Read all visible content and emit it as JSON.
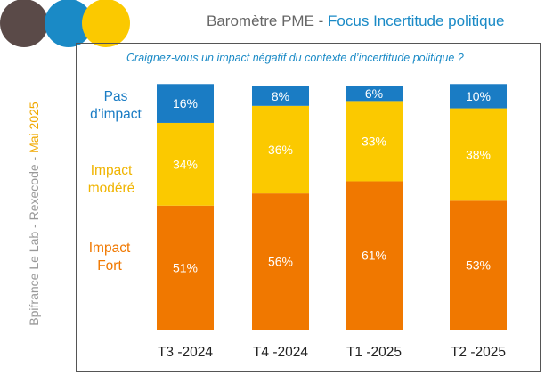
{
  "header": {
    "title_part1": "Baromètre PME",
    "separator": " - ",
    "title_part2": "Focus Incertitude politique"
  },
  "question": "Craignez-vous un impact négatif du contexte d’incertitude politique ?",
  "side_label": {
    "brand": "Bpifrance Le Lab - Rexecode - ",
    "date": "Mai 2025"
  },
  "legend": {
    "pas_impact": {
      "line1": "Pas",
      "line2": "d’impact"
    },
    "modere": {
      "line1": "Impact",
      "line2": "modéré"
    },
    "fort": {
      "line1": "Impact",
      "line2": "Fort"
    }
  },
  "colors": {
    "fort": "#f07800",
    "modere": "#fbc900",
    "pas_impact": "#1a7cc4",
    "circle1": "#5a4a48",
    "circle2": "#1a8ac6",
    "circle3": "#fbc900"
  },
  "chart_data": {
    "type": "bar",
    "stacked": true,
    "title": "Craignez-vous un impact négatif du contexte d’incertitude politique ?",
    "categories": [
      "T3 -2024",
      "T4 -2024",
      "T1 -2025",
      "T2 -2025"
    ],
    "series": [
      {
        "name": "Impact Fort",
        "key": "fort",
        "values": [
          51,
          56,
          61,
          53
        ],
        "labels": [
          "51%",
          "56%",
          "61%",
          "53%"
        ]
      },
      {
        "name": "Impact modéré",
        "key": "modere",
        "values": [
          34,
          36,
          33,
          38
        ],
        "labels": [
          "34%",
          "36%",
          "33%",
          "38%"
        ]
      },
      {
        "name": "Pas d’impact",
        "key": "pas_impact",
        "values": [
          16,
          8,
          6,
          10
        ],
        "labels": [
          "16%",
          "8%",
          "6%",
          "10%"
        ]
      }
    ],
    "ylim": [
      0,
      100
    ],
    "xlabel": "",
    "ylabel": ""
  }
}
